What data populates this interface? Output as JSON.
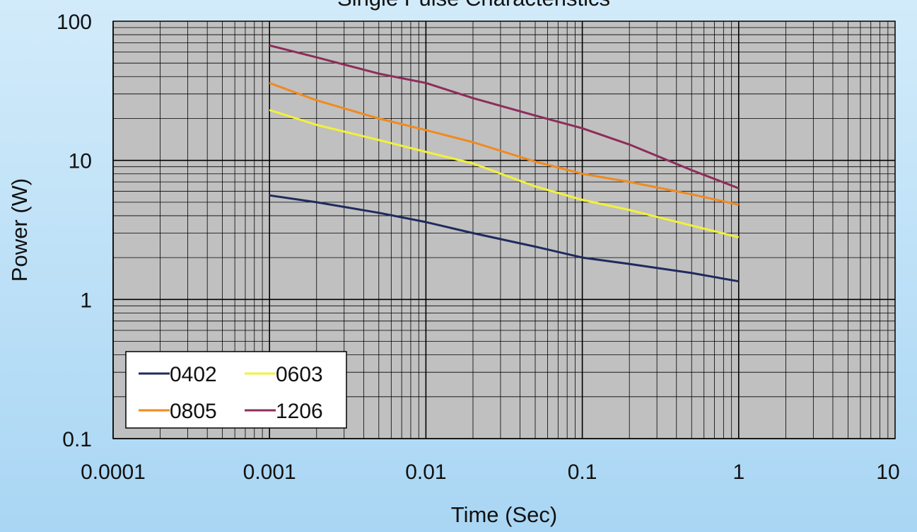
{
  "chart_data": {
    "type": "line",
    "title": "Single Pulse Characteristics",
    "xlabel": "Time (Sec)",
    "ylabel": "Power (W)",
    "xscale": "log",
    "yscale": "log",
    "xlim": [
      0.0001,
      10
    ],
    "ylim": [
      0.1,
      100
    ],
    "xticks": [
      "0.0001",
      "0.001",
      "0.01",
      "0.1",
      "1",
      "10"
    ],
    "yticks": [
      "0.1",
      "1",
      "10",
      "100"
    ],
    "grid": true,
    "legend_position": "bottom-left",
    "x": [
      0.001,
      0.002,
      0.005,
      0.01,
      0.02,
      0.05,
      0.1,
      0.2,
      0.5,
      1
    ],
    "series": [
      {
        "name": "0402",
        "color": "#1f2a5e",
        "values": [
          5.6,
          5.0,
          4.2,
          3.6,
          3.0,
          2.4,
          2.0,
          1.8,
          1.55,
          1.35
        ]
      },
      {
        "name": "0603",
        "color": "#f2f23a",
        "values": [
          23,
          18,
          14,
          11.5,
          9.5,
          6.5,
          5.2,
          4.4,
          3.4,
          2.8
        ]
      },
      {
        "name": "0805",
        "color": "#f08a1e",
        "values": [
          36,
          27,
          20,
          16.5,
          13.5,
          9.8,
          8.0,
          7.0,
          5.7,
          4.8
        ]
      },
      {
        "name": "1206",
        "color": "#8e2c5a",
        "values": [
          67,
          55,
          42,
          36,
          28,
          21,
          17,
          13,
          8.5,
          6.3
        ]
      }
    ]
  }
}
